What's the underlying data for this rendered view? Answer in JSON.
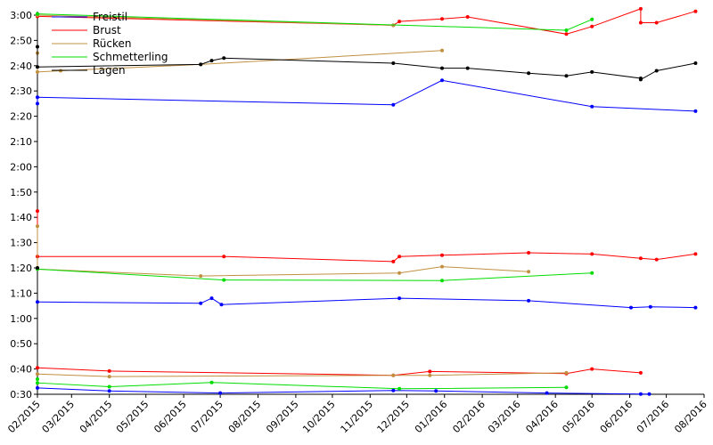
{
  "chart_data": {
    "type": "line",
    "title": "",
    "xlabel": "",
    "ylabel": "",
    "x_type": "date",
    "xlim": [
      "2015-02-01",
      "2016-08-01"
    ],
    "ylim": [
      "0:30",
      "3:00"
    ],
    "y_unit": "m:ss",
    "y_ticks": [
      "0:30",
      "0:40",
      "0:50",
      "1:00",
      "1:10",
      "1:20",
      "1:30",
      "1:40",
      "1:50",
      "2:00",
      "2:10",
      "2:20",
      "2:30",
      "2:40",
      "2:50",
      "3:00"
    ],
    "x_ticks": [
      {
        "date": "2015-02-01",
        "label": "02/2015"
      },
      {
        "date": "2015-03-01",
        "label": "03/2015"
      },
      {
        "date": "2015-04-01",
        "label": "04/2015"
      },
      {
        "date": "2015-05-01",
        "label": "05/2015"
      },
      {
        "date": "2015-06-01",
        "label": "06/2015"
      },
      {
        "date": "2015-07-01",
        "label": "07/2015"
      },
      {
        "date": "2015-08-01",
        "label": "08/2015"
      },
      {
        "date": "2015-09-01",
        "label": "09/2015"
      },
      {
        "date": "2015-10-01",
        "label": "10/2015"
      },
      {
        "date": "2015-11-01",
        "label": "11/2015"
      },
      {
        "date": "2015-12-01",
        "label": "12/2015"
      },
      {
        "date": "2016-01-01",
        "label": "01/2016"
      },
      {
        "date": "2016-02-01",
        "label": "02/2016"
      },
      {
        "date": "2016-03-01",
        "label": "03/2016"
      },
      {
        "date": "2016-04-01",
        "label": "04/2016"
      },
      {
        "date": "2016-05-01",
        "label": "05/2016"
      },
      {
        "date": "2016-06-01",
        "label": "06/2016"
      },
      {
        "date": "2016-07-01",
        "label": "07/2016"
      },
      {
        "date": "2016-08-01",
        "label": "08/2016"
      }
    ],
    "legend_position": "top-left",
    "grid": false,
    "series": [
      {
        "name": "Freistil",
        "color": "#0000ff",
        "lines": [
          [
            [
              "2015-02-01",
              "0:32.5"
            ],
            [
              "2015-04-01",
              "0:31.3"
            ],
            [
              "2015-07-01",
              "0:30.5"
            ],
            [
              "2015-11-20",
              "0:31.5"
            ],
            [
              "2015-12-25",
              "0:31.3"
            ],
            [
              "2016-03-25",
              "0:30.5"
            ],
            [
              "2016-06-10",
              "0:30.1"
            ],
            [
              "2016-06-17",
              "0:30.1"
            ]
          ],
          [
            [
              "2015-02-01",
              "1:06.5"
            ],
            [
              "2015-06-15",
              "1:06.0"
            ],
            [
              "2015-06-24",
              "1:08.0"
            ],
            [
              "2015-07-02",
              "1:05.5"
            ],
            [
              "2015-11-25",
              "1:08.0"
            ],
            [
              "2016-03-10",
              "1:07.0"
            ],
            [
              "2016-06-02",
              "1:04.3"
            ],
            [
              "2016-06-18",
              "1:04.6"
            ],
            [
              "2016-07-25",
              "1:04.3"
            ]
          ],
          [
            [
              "2015-02-01",
              "2:25"
            ],
            [
              "2015-02-01",
              "2:27.5"
            ],
            [
              "2015-11-20",
              "2:24.5"
            ],
            [
              "2015-12-30",
              "2:34.2"
            ],
            [
              "2016-05-01",
              "2:23.8"
            ],
            [
              "2016-07-25",
              "2:22"
            ]
          ]
        ]
      },
      {
        "name": "Brust",
        "color": "#ff0000",
        "lines": [
          [
            [
              "2015-02-01",
              "0:40.5"
            ],
            [
              "2015-04-01",
              "0:39.2"
            ],
            [
              "2015-11-20",
              "0:37.5"
            ],
            [
              "2015-12-20",
              "0:39.0"
            ],
            [
              "2016-04-10",
              "0:38.2"
            ],
            [
              "2016-05-01",
              "0:40.0"
            ],
            [
              "2016-06-10",
              "0:38.5"
            ]
          ],
          [
            [
              "2015-02-01",
              "1:42.5"
            ],
            [
              "2015-02-01",
              "1:24.5"
            ],
            [
              "2015-07-04",
              "1:24.5"
            ],
            [
              "2015-11-20",
              "1:22.5"
            ],
            [
              "2015-11-25",
              "1:24.5"
            ],
            [
              "2015-12-30",
              "1:25"
            ],
            [
              "2016-03-10",
              "1:26"
            ],
            [
              "2016-05-01",
              "1:25.5"
            ],
            [
              "2016-06-10",
              "1:23.8"
            ],
            [
              "2016-06-23",
              "1:23.3"
            ],
            [
              "2016-07-25",
              "1:25.5"
            ]
          ],
          [
            [
              "2015-02-01",
              "2:59.5"
            ],
            [
              "2015-11-20",
              "2:56"
            ],
            [
              "2015-11-25",
              "2:57.5"
            ],
            [
              "2015-12-30",
              "2:58.5"
            ],
            [
              "2016-01-20",
              "2:59.3"
            ],
            [
              "2016-04-10",
              "2:52.5"
            ],
            [
              "2016-05-01",
              "2:55.5"
            ],
            [
              "2016-06-10",
              "3:02.5"
            ],
            [
              "2016-06-10",
              "2:57"
            ],
            [
              "2016-06-23",
              "2:57"
            ],
            [
              "2016-07-25",
              "3:01.5"
            ]
          ]
        ]
      },
      {
        "name": "Rücken",
        "color": "#c09040",
        "lines": [
          [
            [
              "2015-02-01",
              "0:38.0"
            ],
            [
              "2015-04-01",
              "0:37.0"
            ],
            [
              "2015-11-20",
              "0:37.5"
            ],
            [
              "2015-12-20",
              "0:37.5"
            ],
            [
              "2016-04-10",
              "0:38.5"
            ]
          ],
          [
            [
              "2015-02-01",
              "1:36.5"
            ],
            [
              "2015-02-01",
              "1:19.5"
            ],
            [
              "2015-06-15",
              "1:16.8"
            ],
            [
              "2015-11-25",
              "1:18.0"
            ],
            [
              "2015-12-30",
              "1:20.5"
            ],
            [
              "2016-03-10",
              "1:18.5"
            ]
          ],
          [
            [
              "2015-02-01",
              "2:45"
            ],
            [
              "2015-02-01",
              "2:37.5"
            ],
            [
              "2015-02-20",
              "2:38"
            ],
            [
              "2015-06-15",
              "2:40.5"
            ],
            [
              "2015-12-30",
              "2:46"
            ]
          ],
          [
            [
              "2015-02-01",
              "3:00"
            ],
            [
              "2015-11-20",
              "2:56"
            ]
          ]
        ]
      },
      {
        "name": "Schmetterling",
        "color": "#00dd00",
        "lines": [
          [
            [
              "2015-02-01",
              "0:36.0"
            ],
            [
              "2015-02-01",
              "0:34.5"
            ],
            [
              "2015-04-01",
              "0:33.0"
            ],
            [
              "2015-06-24",
              "0:34.7"
            ],
            [
              "2015-11-25",
              "0:32.2"
            ],
            [
              "2016-04-10",
              "0:32.7"
            ]
          ],
          [
            [
              "2015-02-01",
              "1:19.5"
            ],
            [
              "2015-07-04",
              "1:15.2"
            ],
            [
              "2015-12-30",
              "1:15.0"
            ],
            [
              "2016-05-01",
              "1:18.0"
            ]
          ],
          [
            [
              "2015-02-01",
              "3:00.5"
            ],
            [
              "2016-04-10",
              "2:54"
            ],
            [
              "2016-05-01",
              "2:58.3"
            ]
          ]
        ]
      },
      {
        "name": "Lagen",
        "color": "#000000",
        "lines": [
          [
            [
              "2015-02-01",
              "2:47.5"
            ],
            [
              "2015-02-01",
              "2:39.5"
            ],
            [
              "2015-06-15",
              "2:40.5"
            ],
            [
              "2015-06-24",
              "2:42"
            ],
            [
              "2015-07-04",
              "2:43"
            ],
            [
              "2015-11-20",
              "2:41"
            ],
            [
              "2015-12-30",
              "2:39"
            ],
            [
              "2016-01-20",
              "2:39"
            ],
            [
              "2016-03-10",
              "2:37"
            ],
            [
              "2016-04-10",
              "2:36"
            ],
            [
              "2016-05-01",
              "2:37.5"
            ],
            [
              "2016-06-10",
              "2:35"
            ],
            [
              "2016-06-10",
              "2:34.5"
            ],
            [
              "2016-06-23",
              "2:38"
            ],
            [
              "2016-07-25",
              "2:41"
            ]
          ],
          [
            [
              "2015-02-01",
              "1:20"
            ]
          ]
        ]
      }
    ]
  }
}
